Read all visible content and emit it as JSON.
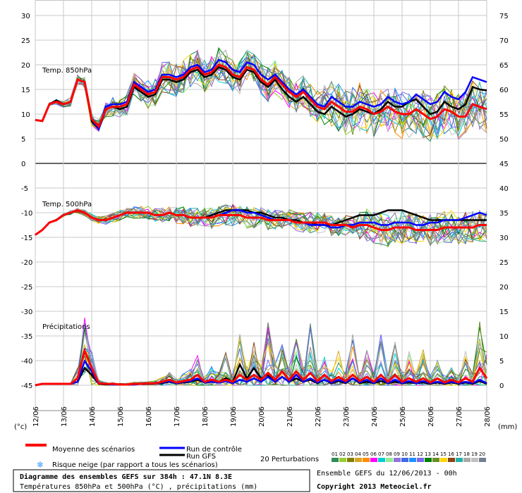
{
  "chart_data": {
    "type": "line",
    "title": "Diagramme des ensembles GEFS sur 384h : 47.1N 8.3E",
    "subtitle": "Températures 850hPa et 500hPa (°C) , précipitations (mm)",
    "left_unit": "(°c)",
    "right_unit": "(mm)",
    "left_ticks": [
      30,
      25,
      20,
      15,
      10,
      5,
      0,
      -5,
      -10,
      -15,
      -20,
      -25,
      -30,
      -35,
      -40,
      -45
    ],
    "right_ticks": [
      75,
      70,
      65,
      60,
      55,
      50,
      45,
      40,
      35,
      30,
      25,
      20,
      15,
      10,
      5,
      0
    ],
    "ylim_left": [
      -45,
      30
    ],
    "x_labels": [
      "12/06",
      "13/06",
      "14/06",
      "15/06",
      "16/06",
      "17/06",
      "18/06",
      "19/06",
      "20/06",
      "21/06",
      "22/06",
      "23/06",
      "24/06",
      "25/06",
      "26/06",
      "27/06",
      "28/06"
    ],
    "sections": [
      "Temp. 850hPa",
      "Temp. 500hPa",
      "Précipitations"
    ],
    "steps_per_day": 4,
    "t850": {
      "mean": [
        8.8,
        8.6,
        12.0,
        12.5,
        12.0,
        12.5,
        17.0,
        16.5,
        9.0,
        7.5,
        11.0,
        11.5,
        11.5,
        12.0,
        16.0,
        15.0,
        14.0,
        14.5,
        17.5,
        17.5,
        17.0,
        17.5,
        19.0,
        19.5,
        18.0,
        18.5,
        20.0,
        19.5,
        18.0,
        17.5,
        19.5,
        19.0,
        17.0,
        16.0,
        17.5,
        16.0,
        14.5,
        13.5,
        14.5,
        13.0,
        11.5,
        11.0,
        12.5,
        11.5,
        10.5,
        10.5,
        11.5,
        11.0,
        10.0,
        10.5,
        11.5,
        10.5,
        10.0,
        10.0,
        11.0,
        10.0,
        9.0,
        9.5,
        11.0,
        10.5,
        9.5,
        9.5,
        12.0,
        11.5,
        11.0
      ],
      "control": [
        8.8,
        8.6,
        12.0,
        12.5,
        12.0,
        12.5,
        17.0,
        16.5,
        9.0,
        7.0,
        11.5,
        12.0,
        12.0,
        12.5,
        16.5,
        15.5,
        14.5,
        15.0,
        18.0,
        18.0,
        17.5,
        18.0,
        19.5,
        20.0,
        18.5,
        19.0,
        21.0,
        20.5,
        19.0,
        18.5,
        20.5,
        20.0,
        18.0,
        17.0,
        18.0,
        16.5,
        15.0,
        14.0,
        15.0,
        13.5,
        12.0,
        11.5,
        13.5,
        12.5,
        11.5,
        11.5,
        12.5,
        12.0,
        11.5,
        12.0,
        13.5,
        12.5,
        12.0,
        12.5,
        14.0,
        13.0,
        12.0,
        12.5,
        14.5,
        13.5,
        13.0,
        14.5,
        17.5,
        17.0,
        16.5
      ],
      "gfs": [
        8.8,
        8.6,
        12.0,
        12.8,
        12.0,
        12.5,
        17.0,
        16.5,
        8.5,
        7.0,
        11.0,
        11.5,
        11.0,
        11.5,
        15.5,
        14.5,
        13.5,
        14.0,
        17.0,
        17.0,
        16.5,
        17.0,
        18.5,
        19.0,
        17.5,
        18.0,
        19.5,
        19.0,
        17.5,
        17.0,
        19.0,
        18.5,
        16.5,
        15.5,
        17.0,
        15.0,
        13.5,
        12.5,
        13.5,
        12.0,
        10.5,
        10.0,
        11.5,
        10.5,
        9.5,
        10.0,
        11.0,
        10.5,
        10.0,
        11.0,
        12.5,
        11.5,
        11.5,
        12.5,
        13.0,
        11.5,
        10.0,
        10.5,
        12.5,
        11.5,
        11.0,
        12.0,
        15.5,
        15.0,
        14.8
      ]
    },
    "t500": {
      "mean": [
        -14.5,
        -13.5,
        -12.0,
        -11.5,
        -10.5,
        -10.0,
        -9.5,
        -10.0,
        -11.0,
        -11.5,
        -11.5,
        -11.0,
        -10.5,
        -10.0,
        -10.0,
        -10.0,
        -10.0,
        -10.5,
        -10.5,
        -10.0,
        -10.5,
        -10.5,
        -11.0,
        -11.0,
        -11.0,
        -11.0,
        -10.5,
        -10.5,
        -10.5,
        -10.5,
        -11.0,
        -11.0,
        -11.0,
        -11.5,
        -11.5,
        -11.5,
        -11.5,
        -12.0,
        -12.0,
        -12.0,
        -12.0,
        -12.0,
        -12.5,
        -12.5,
        -12.5,
        -13.0,
        -12.5,
        -12.5,
        -13.0,
        -13.5,
        -13.5,
        -13.0,
        -13.0,
        -13.0,
        -13.5,
        -13.5,
        -13.5,
        -13.5,
        -13.0,
        -13.0,
        -13.0,
        -13.0,
        -13.0,
        -12.5,
        -12.5
      ],
      "control": [
        -14.5,
        -13.5,
        -12.0,
        -11.5,
        -10.5,
        -10.0,
        -9.5,
        -10.0,
        -11.0,
        -11.5,
        -11.5,
        -11.0,
        -10.5,
        -10.0,
        -10.0,
        -10.0,
        -10.0,
        -10.5,
        -10.5,
        -10.0,
        -10.5,
        -10.5,
        -11.0,
        -11.0,
        -11.0,
        -11.0,
        -10.5,
        -10.0,
        -9.5,
        -9.5,
        -10.0,
        -10.0,
        -10.5,
        -11.0,
        -11.5,
        -11.5,
        -11.5,
        -12.0,
        -12.0,
        -12.5,
        -12.5,
        -12.5,
        -13.0,
        -13.0,
        -12.5,
        -12.5,
        -12.0,
        -12.0,
        -12.0,
        -12.5,
        -12.5,
        -12.0,
        -12.0,
        -12.0,
        -12.5,
        -12.5,
        -12.0,
        -12.0,
        -11.5,
        -11.5,
        -11.5,
        -11.0,
        -10.5,
        -10.0,
        -10.5
      ],
      "gfs": [
        -14.5,
        -13.5,
        -12.0,
        -11.5,
        -10.5,
        -10.0,
        -9.5,
        -10.0,
        -11.0,
        -11.5,
        -11.5,
        -11.0,
        -10.5,
        -10.0,
        -10.0,
        -10.0,
        -10.0,
        -10.5,
        -10.5,
        -10.0,
        -10.5,
        -10.5,
        -11.0,
        -11.0,
        -11.0,
        -10.5,
        -10.0,
        -9.5,
        -9.5,
        -9.5,
        -9.5,
        -10.0,
        -10.0,
        -10.5,
        -11.0,
        -11.0,
        -11.5,
        -11.5,
        -12.0,
        -12.0,
        -12.5,
        -12.5,
        -12.5,
        -12.0,
        -11.5,
        -11.0,
        -10.5,
        -10.5,
        -10.5,
        -10.0,
        -9.5,
        -9.5,
        -9.5,
        -10.0,
        -10.5,
        -11.0,
        -11.5,
        -11.5,
        -11.5,
        -11.5,
        -11.5,
        -11.5,
        -11.5,
        -11.5,
        -11.5
      ]
    },
    "precip": {
      "mean": [
        0,
        0.2,
        0.2,
        0.2,
        0.2,
        0.2,
        1.0,
        5.0,
        2.5,
        0.3,
        0.2,
        0.2,
        0.1,
        0.1,
        0.2,
        0.2,
        0.3,
        0.3,
        0.5,
        0.8,
        0.4,
        0.6,
        0.8,
        1.5,
        0.5,
        0.8,
        0.5,
        0.8,
        0.5,
        1.5,
        0.8,
        1.5,
        0.8,
        1.8,
        0.8,
        2.0,
        0.8,
        2.0,
        0.8,
        1.8,
        0.6,
        1.5,
        0.6,
        1.2,
        0.6,
        1.5,
        0.6,
        1.2,
        0.5,
        1.5,
        0.5,
        1.5,
        0.5,
        1.0,
        0.5,
        1.0,
        0.4,
        1.0,
        0.4,
        0.8,
        0.4,
        1.0,
        0.5,
        2.5,
        1.0
      ],
      "control": [
        0,
        0.2,
        0.2,
        0.2,
        0.2,
        0.2,
        0.5,
        3.5,
        2.0,
        0.2,
        0.2,
        0.1,
        0.1,
        0.1,
        0.1,
        0.2,
        0.2,
        0.3,
        0.4,
        0.6,
        0.3,
        0.5,
        0.6,
        1.0,
        0.4,
        0.5,
        0.4,
        0.6,
        0.3,
        0.8,
        0.5,
        1.0,
        0.5,
        1.2,
        0.5,
        1.2,
        0.5,
        1.5,
        0.5,
        1.0,
        0.4,
        0.8,
        0.4,
        0.8,
        0.4,
        1.0,
        0.4,
        0.8,
        0.3,
        1.0,
        0.3,
        0.8,
        0.3,
        0.6,
        0.3,
        0.6,
        0.3,
        0.5,
        0.3,
        0.5,
        0.3,
        0.5,
        0.3,
        0.8,
        0.3
      ],
      "gfs": [
        0,
        0.2,
        0.2,
        0.2,
        0.2,
        0.2,
        0.5,
        2.5,
        1.5,
        0.2,
        0.1,
        0.1,
        0.1,
        0.1,
        0.1,
        0.2,
        0.2,
        0.3,
        0.3,
        0.5,
        0.3,
        0.4,
        0.5,
        0.8,
        0.4,
        0.6,
        0.5,
        1.0,
        0.5,
        3.0,
        1.0,
        2.5,
        1.0,
        1.5,
        0.5,
        1.2,
        0.5,
        1.0,
        0.5,
        0.8,
        0.3,
        0.8,
        0.3,
        0.6,
        0.3,
        1.0,
        0.3,
        0.5,
        0.3,
        0.6,
        0.3,
        0.5,
        0.3,
        0.4,
        0.3,
        0.4,
        0.2,
        0.4,
        0.2,
        0.4,
        0.2,
        0.4,
        0.2,
        0.6,
        0.2
      ],
      "spread_max": [
        0,
        0.2,
        0.2,
        0.2,
        0.2,
        0.2,
        3.0,
        10.0,
        6.0,
        1.0,
        0.5,
        0.5,
        0.4,
        0.4,
        0.5,
        0.6,
        0.8,
        1.0,
        1.5,
        2.5,
        1.5,
        2.5,
        3.0,
        6.0,
        2.0,
        4.0,
        3.0,
        8.0,
        3.0,
        12.0,
        4.0,
        10.0,
        4.0,
        15.0,
        5.0,
        8.0,
        4.0,
        10.0,
        4.0,
        15.0,
        3.0,
        6.0,
        3.0,
        9.0,
        3.0,
        12.0,
        3.0,
        8.0,
        3.0,
        13.0,
        3.0,
        10.0,
        3.0,
        8.0,
        3.0,
        9.0,
        2.0,
        6.0,
        2.0,
        5.0,
        2.0,
        9.0,
        3.0,
        17.0,
        8.0
      ]
    },
    "members_count": 20
  },
  "legend": {
    "mean_label": "Moyenne des scénarios",
    "control_label": "Run de contrôle",
    "gfs_label": "Run GFS",
    "snow_label": "Risque neige (par rapport a tous les scénarios)",
    "perturb_label": "20 Perturbations",
    "perturb_numbers": [
      "01",
      "02",
      "03",
      "04",
      "05",
      "06",
      "07",
      "08",
      "09",
      "10",
      "11",
      "12",
      "13",
      "14",
      "15",
      "16",
      "17",
      "18",
      "19",
      "20"
    ],
    "perturb_colors": [
      "#2e8b57",
      "#9acd32",
      "#808000",
      "#daa520",
      "#ff8c00",
      "#ff00ff",
      "#00ced1",
      "#90ee90",
      "#9370db",
      "#4169e1",
      "#1e90ff",
      "#7b68ee",
      "#008000",
      "#6b8e23",
      "#ffd700",
      "#8b4513",
      "#20b2aa",
      "#a9a9a9",
      "#c0c0c0",
      "#708090"
    ],
    "mean_color": "#ff0000",
    "control_color": "#0000ff",
    "gfs_color": "#000000",
    "snow_color": "#3399ff"
  },
  "footer": {
    "title": "Diagramme des ensembles GEFS sur 384h : 47.1N 8.3E",
    "subtitle": "Températures 850hPa et 500hPa (°C) , précipitations (mm)",
    "run_info": "Ensemble GEFS du 12/06/2013 - 00h",
    "copyright": "Copyright 2013 Meteociel.fr"
  }
}
